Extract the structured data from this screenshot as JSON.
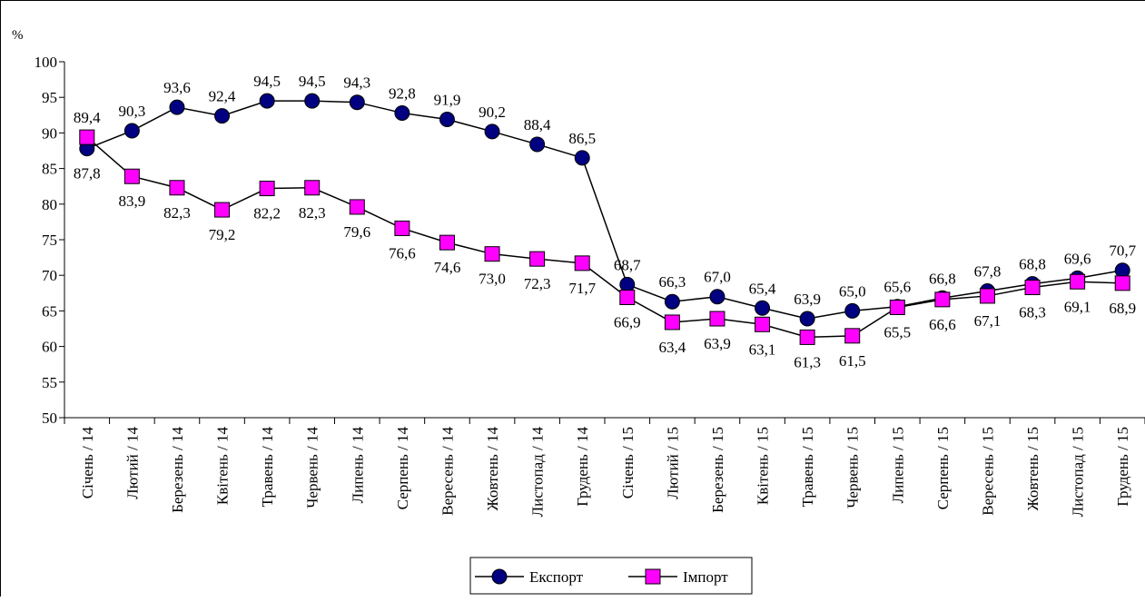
{
  "chart_data": {
    "type": "line",
    "ylabel": "%",
    "ylim": [
      50,
      100
    ],
    "yticks": [
      "50",
      "55",
      "60",
      "65",
      "70",
      "75",
      "80",
      "85",
      "90",
      "95",
      "100"
    ],
    "categories": [
      "Січень / 14",
      "Лютий / 14",
      "Березень / 14",
      "Квітень / 14",
      "Травень / 14",
      "Червень / 14",
      "Липень / 14",
      "Серпень / 14",
      "Вересень / 14",
      "Жовтень / 14",
      "Листопад / 14",
      "Грудень / 14",
      "Січень / 15",
      "Лютий / 15",
      "Березень / 15",
      "Квітень / 15",
      "Травень / 15",
      "Червень / 15",
      "Липень / 15",
      "Серпень / 15",
      "Вересень / 15",
      "Жовтень / 15",
      "Листопад / 15",
      "Грудень / 15"
    ],
    "series": [
      {
        "name": "Експорт",
        "color": "#000080",
        "marker": "circle",
        "values": [
          87.8,
          90.3,
          93.6,
          92.4,
          94.5,
          94.5,
          94.3,
          92.8,
          91.9,
          90.2,
          88.4,
          86.5,
          68.7,
          66.3,
          67.0,
          65.4,
          63.9,
          65.0,
          65.6,
          66.8,
          67.8,
          68.8,
          69.6,
          70.7
        ],
        "labels": [
          "87,8",
          "90,3",
          "93,6",
          "92,4",
          "94,5",
          "94,5",
          "94,3",
          "92,8",
          "91,9",
          "90,2",
          "88,4",
          "86,5",
          "68,7",
          "66,3",
          "67,0",
          "65,4",
          "63,9",
          "65,0",
          "65,6",
          "66,8",
          "67,8",
          "68,8",
          "69,6",
          "70,7"
        ]
      },
      {
        "name": "Імпорт",
        "color": "#ff00ff",
        "marker": "square",
        "values": [
          89.4,
          83.9,
          82.3,
          79.2,
          82.2,
          82.3,
          79.6,
          76.6,
          74.6,
          73.0,
          72.3,
          71.7,
          66.9,
          63.4,
          63.9,
          63.1,
          61.3,
          61.5,
          65.5,
          66.6,
          67.1,
          68.3,
          69.1,
          68.9
        ],
        "labels": [
          "89,4",
          "83,9",
          "82,3",
          "79,2",
          "82,2",
          "82,3",
          "79,6",
          "76,6",
          "74,6",
          "73,0",
          "72,3",
          "71,7",
          "66,9",
          "63,4",
          "63,9",
          "63,1",
          "61,3",
          "61,5",
          "65,5",
          "66,6",
          "67,1",
          "68,3",
          "69,1",
          "68,9"
        ]
      }
    ],
    "legend": "bottom-center",
    "grid": false
  }
}
